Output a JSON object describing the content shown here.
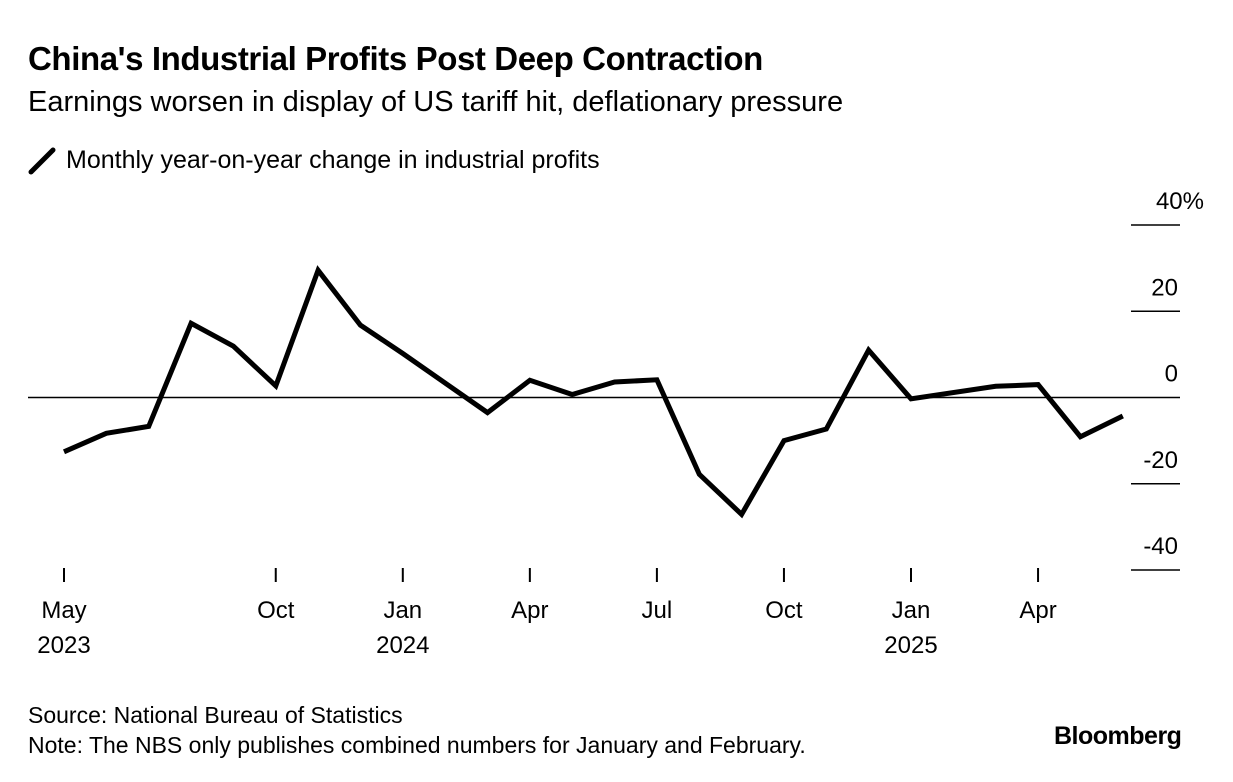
{
  "colors": {
    "line": "#000000",
    "axis": "#000000",
    "background": "#ffffff"
  },
  "chart_data": {
    "type": "line",
    "title": "China's Industrial Profits Post Deep Contraction",
    "subtitle": "Earnings worsen in display of US tariff hit, deflationary pressure",
    "legend": [
      "Monthly year-on-year change in industrial profits"
    ],
    "legend_icon": "line-segment-icon",
    "ylim": [
      -40,
      40
    ],
    "y_ticks": [
      40,
      20,
      0,
      -20,
      -40
    ],
    "y_tick_labels": [
      "40%",
      "20",
      "0",
      "-20",
      "-40"
    ],
    "x_ticks": [
      {
        "month": "2023-05",
        "label": "May",
        "sublabel": "2023"
      },
      {
        "month": "2023-10",
        "label": "Oct",
        "sublabel": ""
      },
      {
        "month": "2024-01",
        "label": "Jan",
        "sublabel": "2024"
      },
      {
        "month": "2024-04",
        "label": "Apr",
        "sublabel": ""
      },
      {
        "month": "2024-07",
        "label": "Jul",
        "sublabel": ""
      },
      {
        "month": "2024-10",
        "label": "Oct",
        "sublabel": ""
      },
      {
        "month": "2025-01",
        "label": "Jan",
        "sublabel": "2025"
      },
      {
        "month": "2025-04",
        "label": "Apr",
        "sublabel": ""
      }
    ],
    "series": [
      {
        "name": "Monthly year-on-year change in industrial profits",
        "x": [
          "2023-05",
          "2023-06",
          "2023-07",
          "2023-08",
          "2023-09",
          "2023-10",
          "2023-11",
          "2023-12",
          "2024-01",
          "2024-03",
          "2024-04",
          "2024-05",
          "2024-06",
          "2024-07",
          "2024-08",
          "2024-09",
          "2024-10",
          "2024-11",
          "2024-12",
          "2025-01",
          "2025-03",
          "2025-04",
          "2025-05",
          "2025-06"
        ],
        "values": [
          -12.6,
          -8.3,
          -6.7,
          17.2,
          11.9,
          2.7,
          29.5,
          16.8,
          10.2,
          -3.5,
          4.0,
          0.7,
          3.6,
          4.1,
          -17.8,
          -27.1,
          -10.0,
          -7.3,
          11.0,
          -0.3,
          2.6,
          3.0,
          -9.1,
          -4.3
        ]
      }
    ]
  },
  "footer": {
    "source": "Source: National Bureau of Statistics",
    "note": "Note: The NBS only publishes combined numbers for January and February.",
    "brand": "Bloomberg"
  }
}
